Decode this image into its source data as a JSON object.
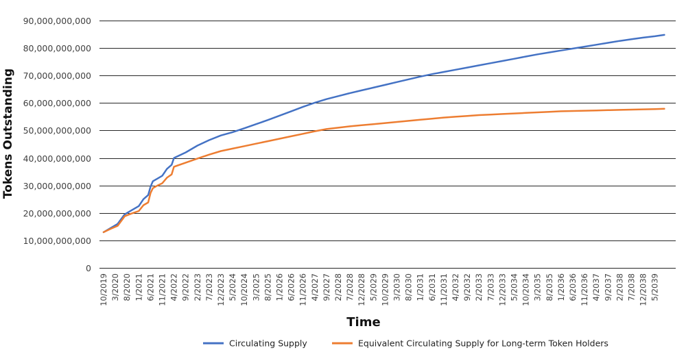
{
  "chart_data": {
    "type": "line",
    "title": "",
    "xlabel": "Time",
    "ylabel": "Tokens Outstanding",
    "ylim": [
      0,
      90000000000
    ],
    "y_ticks": [
      "0",
      "10,000,000,000",
      "20,000,000,000",
      "30,000,000,000",
      "40,000,000,000",
      "50,000,000,000",
      "60,000,000,000",
      "70,000,000,000",
      "80,000,000,000",
      "90,000,000,000"
    ],
    "x_ticks": [
      "10/2019",
      "3/2020",
      "8/2020",
      "1/2021",
      "6/2021",
      "11/2021",
      "4/2022",
      "9/2022",
      "2/2023",
      "7/2023",
      "12/2023",
      "5/2024",
      "10/2024",
      "3/2025",
      "8/2025",
      "1/2026",
      "6/2026",
      "11/2026",
      "4/2027",
      "9/2027",
      "2/2028",
      "7/2028",
      "12/2028",
      "5/2029",
      "10/2029",
      "3/2030",
      "8/2030",
      "1/2031",
      "6/2031",
      "11/2031",
      "4/2032",
      "9/2032",
      "2/2033",
      "7/2033",
      "12/2033",
      "5/2034",
      "10/2034",
      "3/2035",
      "8/2035",
      "1/2036",
      "6/2036",
      "11/2036",
      "4/2037",
      "9/2037",
      "2/2038",
      "7/2038",
      "12/2038",
      "5/2039"
    ],
    "grid": true,
    "legend": "bottom",
    "series": [
      {
        "name": "Circulating Supply",
        "color": "#4472C4",
        "points": [
          [
            "10/2019",
            13000000000
          ],
          [
            "1/2020",
            14500000000
          ],
          [
            "4/2020",
            16000000000
          ],
          [
            "7/2020",
            19500000000
          ],
          [
            "10/2020",
            21000000000
          ],
          [
            "1/2021",
            22500000000
          ],
          [
            "3/2021",
            25000000000
          ],
          [
            "5/2021",
            26500000000
          ],
          [
            "6/2021",
            29500000000
          ],
          [
            "7/2021",
            31500000000
          ],
          [
            "9/2021",
            32500000000
          ],
          [
            "11/2021",
            33500000000
          ],
          [
            "1/2022",
            36000000000
          ],
          [
            "3/2022",
            37500000000
          ],
          [
            "4/2022",
            40000000000
          ],
          [
            "9/2022",
            42000000000
          ],
          [
            "2/2023",
            44500000000
          ],
          [
            "7/2023",
            46500000000
          ],
          [
            "12/2023",
            48200000000
          ],
          [
            "5/2024",
            49400000000
          ],
          [
            "10/2024",
            50800000000
          ],
          [
            "3/2025",
            52300000000
          ],
          [
            "8/2025",
            53800000000
          ],
          [
            "1/2026",
            55400000000
          ],
          [
            "6/2026",
            57000000000
          ],
          [
            "11/2026",
            58600000000
          ],
          [
            "4/2027",
            60100000000
          ],
          [
            "9/2027",
            61400000000
          ],
          [
            "2/2028",
            62500000000
          ],
          [
            "7/2028",
            63600000000
          ],
          [
            "12/2028",
            64600000000
          ],
          [
            "5/2029",
            65600000000
          ],
          [
            "10/2029",
            66600000000
          ],
          [
            "3/2030",
            67600000000
          ],
          [
            "8/2030",
            68600000000
          ],
          [
            "1/2031",
            69600000000
          ],
          [
            "6/2031",
            70500000000
          ],
          [
            "11/2031",
            71300000000
          ],
          [
            "4/2032",
            72100000000
          ],
          [
            "9/2032",
            72900000000
          ],
          [
            "2/2033",
            73700000000
          ],
          [
            "7/2033",
            74500000000
          ],
          [
            "12/2033",
            75300000000
          ],
          [
            "5/2034",
            76100000000
          ],
          [
            "10/2034",
            76900000000
          ],
          [
            "3/2035",
            77700000000
          ],
          [
            "8/2035",
            78400000000
          ],
          [
            "1/2036",
            79100000000
          ],
          [
            "6/2036",
            79800000000
          ],
          [
            "11/2036",
            80500000000
          ],
          [
            "4/2037",
            81200000000
          ],
          [
            "9/2037",
            81900000000
          ],
          [
            "2/2038",
            82600000000
          ],
          [
            "7/2038",
            83200000000
          ],
          [
            "12/2038",
            83800000000
          ],
          [
            "5/2039",
            84300000000
          ],
          [
            "9/2039",
            84800000000
          ]
        ]
      },
      {
        "name": "Equivalent Circulating Supply for Long-term Token Holders",
        "color": "#ED7D31",
        "points": [
          [
            "10/2019",
            13000000000
          ],
          [
            "1/2020",
            14200000000
          ],
          [
            "4/2020",
            15300000000
          ],
          [
            "7/2020",
            18800000000
          ],
          [
            "10/2020",
            19800000000
          ],
          [
            "1/2021",
            20700000000
          ],
          [
            "3/2021",
            22800000000
          ],
          [
            "5/2021",
            23800000000
          ],
          [
            "6/2021",
            27200000000
          ],
          [
            "7/2021",
            29000000000
          ],
          [
            "9/2021",
            30000000000
          ],
          [
            "11/2021",
            30800000000
          ],
          [
            "1/2022",
            32800000000
          ],
          [
            "3/2022",
            34000000000
          ],
          [
            "4/2022",
            36800000000
          ],
          [
            "9/2022",
            38300000000
          ],
          [
            "2/2023",
            39800000000
          ],
          [
            "7/2023",
            41200000000
          ],
          [
            "12/2023",
            42500000000
          ],
          [
            "5/2024",
            43400000000
          ],
          [
            "10/2024",
            44300000000
          ],
          [
            "3/2025",
            45200000000
          ],
          [
            "8/2025",
            46100000000
          ],
          [
            "1/2026",
            47000000000
          ],
          [
            "6/2026",
            47900000000
          ],
          [
            "11/2026",
            48800000000
          ],
          [
            "4/2027",
            49700000000
          ],
          [
            "9/2027",
            50500000000
          ],
          [
            "2/2028",
            51000000000
          ],
          [
            "7/2028",
            51500000000
          ],
          [
            "12/2028",
            51900000000
          ],
          [
            "5/2029",
            52300000000
          ],
          [
            "10/2029",
            52700000000
          ],
          [
            "3/2030",
            53100000000
          ],
          [
            "8/2030",
            53500000000
          ],
          [
            "1/2031",
            53900000000
          ],
          [
            "6/2031",
            54300000000
          ],
          [
            "11/2031",
            54700000000
          ],
          [
            "4/2032",
            55000000000
          ],
          [
            "9/2032",
            55300000000
          ],
          [
            "2/2033",
            55600000000
          ],
          [
            "7/2033",
            55800000000
          ],
          [
            "12/2033",
            56000000000
          ],
          [
            "5/2034",
            56200000000
          ],
          [
            "10/2034",
            56400000000
          ],
          [
            "3/2035",
            56600000000
          ],
          [
            "8/2035",
            56800000000
          ],
          [
            "1/2036",
            57000000000
          ],
          [
            "6/2036",
            57100000000
          ],
          [
            "11/2036",
            57200000000
          ],
          [
            "4/2037",
            57300000000
          ],
          [
            "9/2037",
            57400000000
          ],
          [
            "2/2038",
            57500000000
          ],
          [
            "7/2038",
            57600000000
          ],
          [
            "12/2038",
            57700000000
          ],
          [
            "5/2039",
            57800000000
          ],
          [
            "9/2039",
            57900000000
          ]
        ]
      }
    ]
  }
}
